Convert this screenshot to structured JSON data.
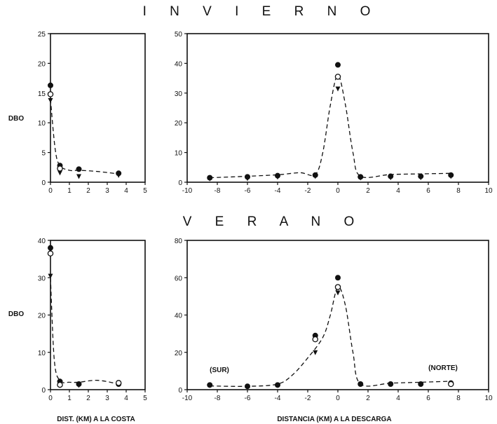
{
  "figure": {
    "section_titles": [
      "I  N  V  I  E  R  N  O",
      "V  E  R  A  N  O"
    ],
    "xlabel_left": "DIST. (KM) A LA COSTA",
    "xlabel_right": "DISTANCIA (KM) A LA DESCARGA"
  },
  "chart_data": [
    {
      "id": "invierno-costa",
      "type": "scatter",
      "title": "I N V I E R N O",
      "ylabel": "DBO",
      "xlabel": "",
      "xlim": [
        0,
        5
      ],
      "ylim": [
        0,
        25
      ],
      "xticks": [
        0,
        1,
        2,
        3,
        4,
        5
      ],
      "yticks": [
        0,
        5,
        10,
        15,
        20,
        25
      ],
      "series": [
        {
          "marker": "filled-circle",
          "x": [
            0,
            0.5,
            1.5,
            3.6
          ],
          "y": [
            16.3,
            2.8,
            2.2,
            1.5
          ]
        },
        {
          "marker": "open-circle",
          "x": [
            0,
            0.5
          ],
          "y": [
            14.8,
            2.3
          ]
        },
        {
          "marker": "triangle",
          "x": [
            0,
            0.5,
            1.5,
            3.6
          ],
          "y": [
            13.8,
            1.6,
            1.0,
            1.2
          ]
        }
      ],
      "fit_line": {
        "style": "dashed",
        "x": [
          0,
          0.25,
          0.5,
          1.0,
          1.5,
          2.5,
          3.6
        ],
        "y": [
          14.0,
          5.5,
          2.8,
          2.0,
          2.0,
          1.8,
          1.4
        ]
      }
    },
    {
      "id": "invierno-descarga",
      "type": "scatter",
      "ylabel": "",
      "xlabel": "",
      "xlim": [
        -10,
        10
      ],
      "ylim": [
        0,
        50
      ],
      "xticks": [
        -10,
        -8,
        -6,
        -4,
        -2,
        0,
        2,
        4,
        6,
        8,
        10
      ],
      "yticks": [
        0,
        10,
        20,
        30,
        40,
        50
      ],
      "series": [
        {
          "marker": "filled-circle",
          "x": [
            -8.5,
            -6,
            -4,
            -1.5,
            0,
            1.5,
            3.5,
            5.5,
            7.5
          ],
          "y": [
            1.5,
            1.8,
            2.2,
            2.4,
            39.5,
            1.8,
            2.0,
            2.0,
            2.4
          ]
        },
        {
          "marker": "open-circle",
          "x": [
            0
          ],
          "y": [
            35.5
          ]
        },
        {
          "marker": "triangle",
          "x": [
            -8.5,
            -6,
            -4,
            -1.5,
            0,
            1.5,
            3.5,
            5.5,
            7.5
          ],
          "y": [
            1.2,
            1.3,
            1.8,
            2.0,
            31.5,
            1.5,
            1.6,
            1.6,
            2.0
          ]
        }
      ],
      "fit_line": {
        "style": "dashed",
        "x": [
          -8.5,
          -6,
          -4,
          -2.5,
          -1.5,
          -1.0,
          -0.5,
          0,
          0.5,
          1.0,
          1.5,
          3.5,
          5.5,
          7.5
        ],
        "y": [
          1.5,
          2.0,
          2.5,
          3.2,
          2.6,
          10,
          26,
          36,
          26,
          10,
          2.0,
          2.6,
          2.8,
          3.0
        ]
      }
    },
    {
      "id": "verano-costa",
      "type": "scatter",
      "ylabel": "DBO",
      "xlabel": "DIST. (KM) A LA COSTA",
      "xlim": [
        0,
        5
      ],
      "ylim": [
        0,
        40
      ],
      "xticks": [
        0,
        1,
        2,
        3,
        4,
        5
      ],
      "yticks": [
        0,
        10,
        20,
        30,
        40
      ],
      "series": [
        {
          "marker": "filled-circle",
          "x": [
            0,
            0.5,
            1.5,
            3.6
          ],
          "y": [
            38.0,
            2.2,
            1.5,
            1.5
          ]
        },
        {
          "marker": "open-circle",
          "x": [
            0,
            0.5,
            3.6
          ],
          "y": [
            36.5,
            1.3,
            1.8
          ]
        },
        {
          "marker": "triangle",
          "x": [
            0,
            1.5
          ],
          "y": [
            30.5,
            1.2
          ]
        }
      ],
      "fit_line": {
        "style": "dashed",
        "x": [
          0,
          0.2,
          0.5,
          1.0,
          1.5,
          2.5,
          3.6
        ],
        "y": [
          30,
          8,
          2.4,
          2.0,
          2.0,
          2.5,
          1.5
        ]
      }
    },
    {
      "id": "verano-descarga",
      "type": "scatter",
      "ylabel": "",
      "xlabel": "DISTANCIA (KM) A LA DESCARGA",
      "xlim": [
        -10,
        10
      ],
      "ylim": [
        0,
        80
      ],
      "xticks": [
        -10,
        -8,
        -6,
        -4,
        -2,
        0,
        2,
        4,
        6,
        8,
        10
      ],
      "yticks": [
        0,
        20,
        40,
        60,
        80
      ],
      "annotations": [
        "(SUR)",
        "(NORTE)"
      ],
      "series": [
        {
          "marker": "filled-circle",
          "x": [
            -8.5,
            -6,
            -4,
            -1.5,
            0,
            1.5,
            3.5,
            5.5,
            7.5
          ],
          "y": [
            2.5,
            1.8,
            2.5,
            29.0,
            60.0,
            3.0,
            3.0,
            3.0,
            3.5
          ]
        },
        {
          "marker": "open-circle",
          "x": [
            -1.5,
            0,
            7.5
          ],
          "y": [
            27.0,
            55.0,
            3.0
          ]
        },
        {
          "marker": "triangle",
          "x": [
            -1.5,
            0
          ],
          "y": [
            20.0,
            52.0
          ]
        }
      ],
      "fit_line": {
        "style": "dashed",
        "x": [
          -8.5,
          -6,
          -4,
          -3,
          -2,
          -1,
          -0.5,
          0,
          0.5,
          1.0,
          1.5,
          3.5,
          5.5,
          7.5
        ],
        "y": [
          2.0,
          1.8,
          3.0,
          8,
          17,
          28,
          40,
          55,
          45,
          20,
          3.0,
          3.5,
          4.0,
          4.5
        ]
      }
    }
  ]
}
